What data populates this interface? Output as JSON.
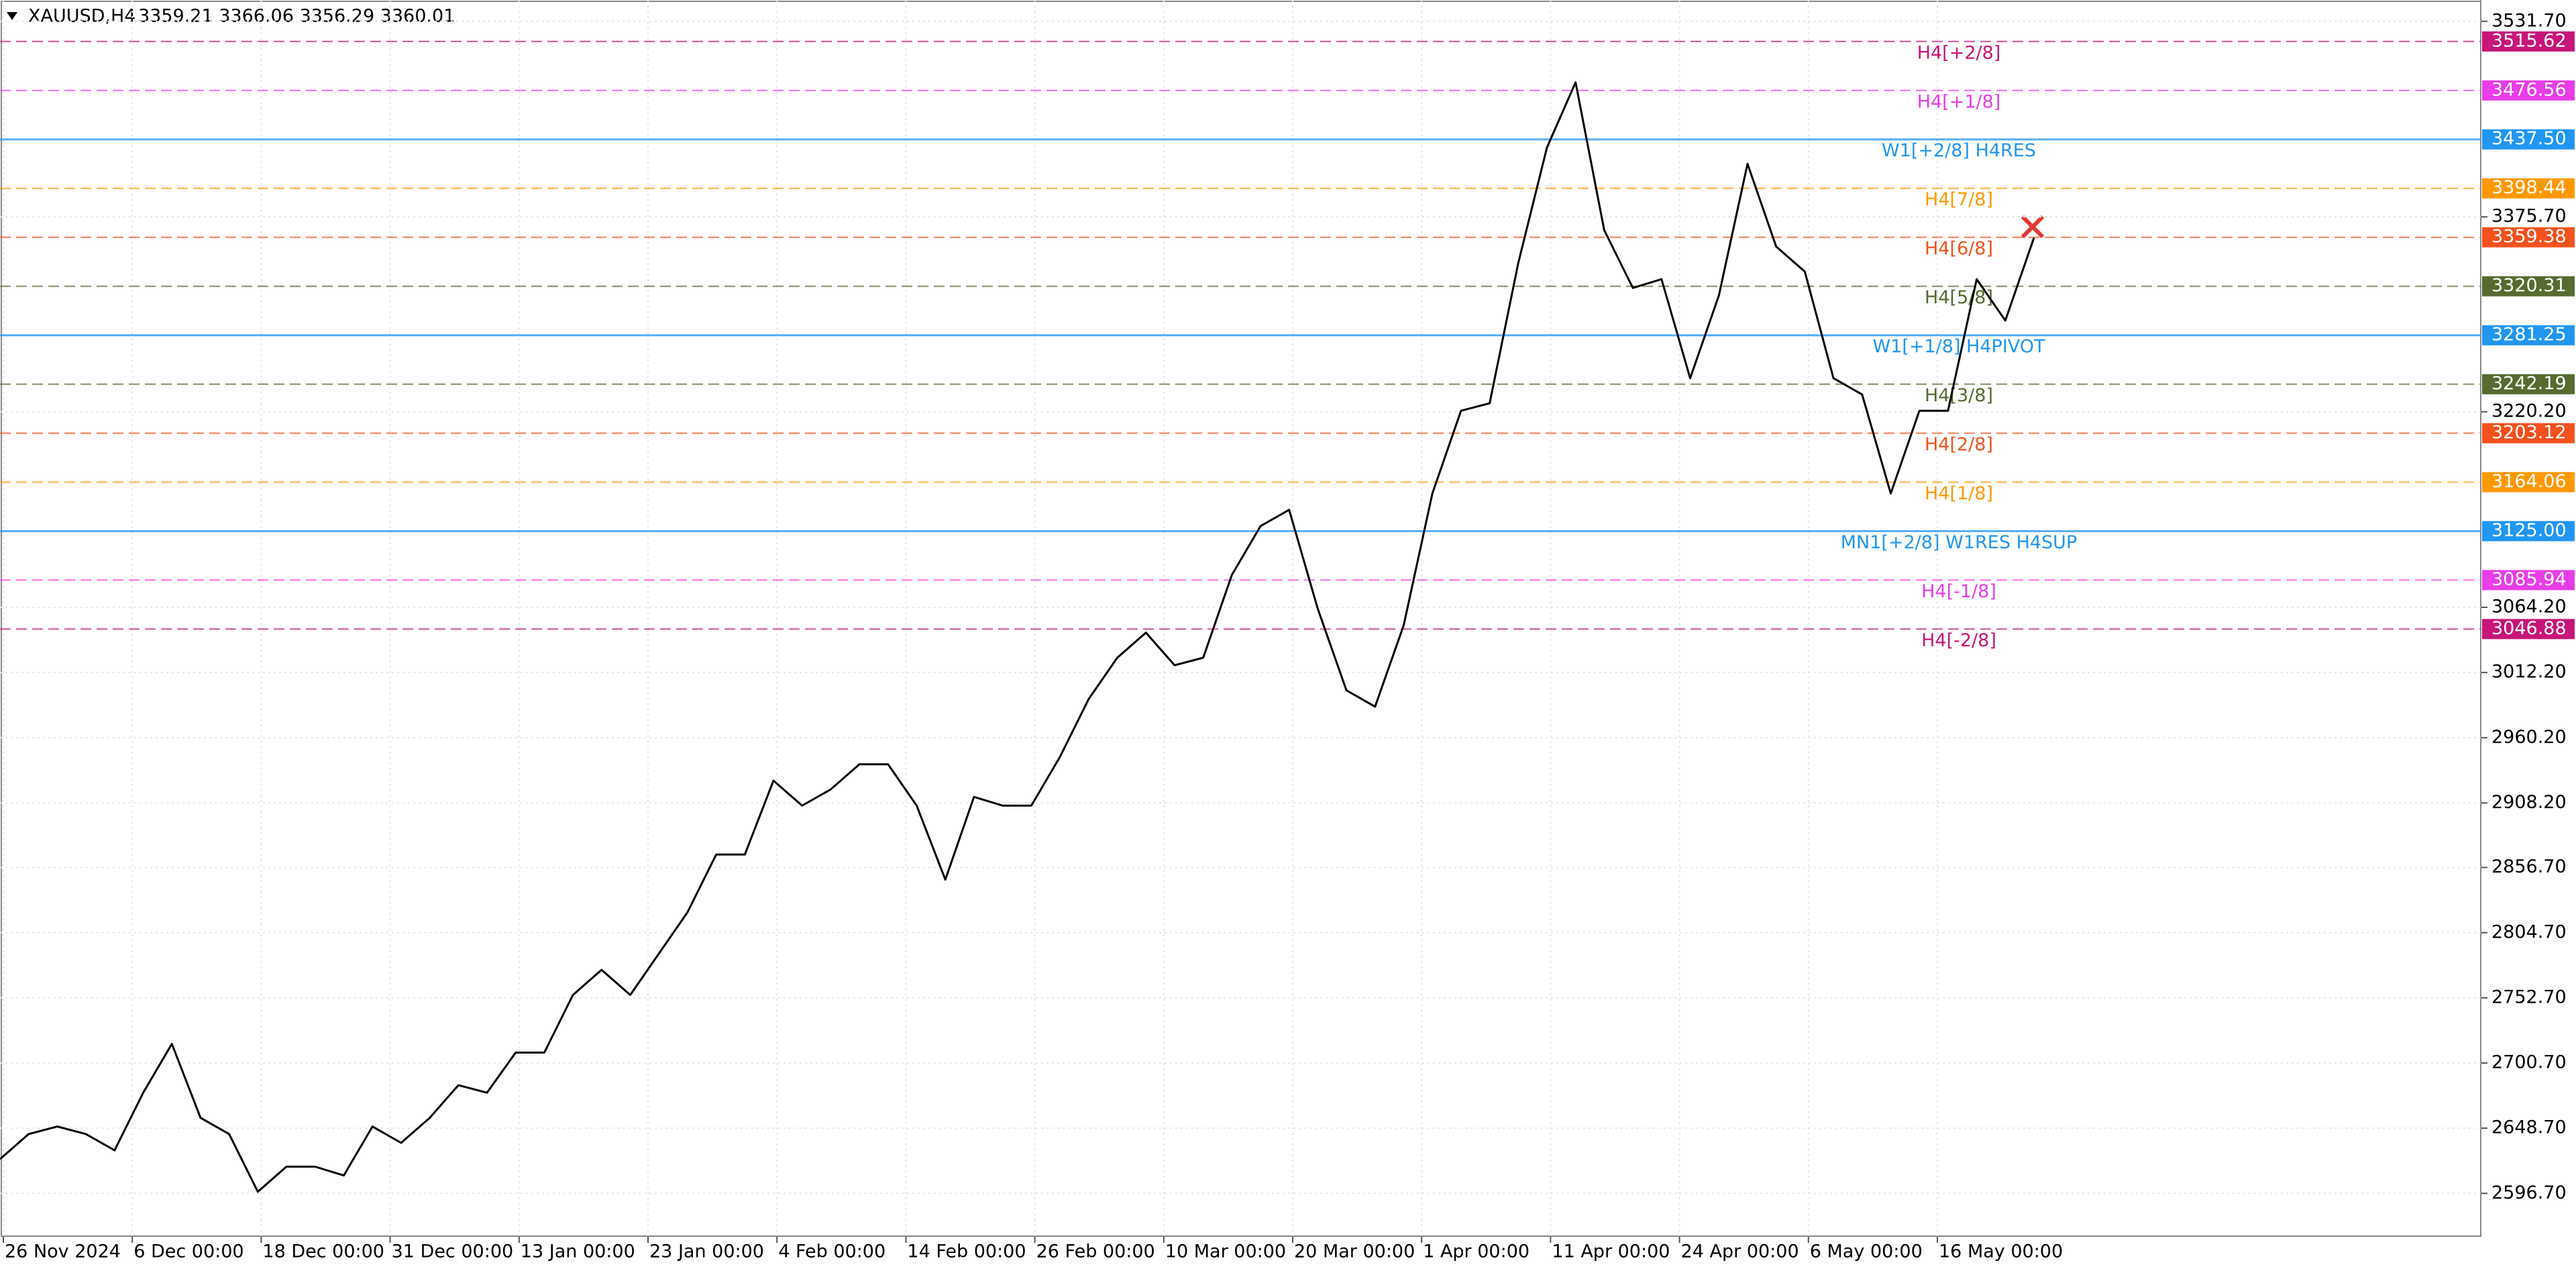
{
  "chart_data": {
    "type": "line",
    "title": "XAUUSD,H4",
    "subtitle": "3359.21 3366.06 3356.29 3360.01",
    "color": "#000000",
    "values": [
      2624,
      2644,
      2650,
      2644,
      2631,
      2677,
      2716,
      2657,
      2644,
      2598,
      2618,
      2618,
      2611,
      2650,
      2637,
      2657,
      2683,
      2677,
      2709,
      2709,
      2755,
      2775,
      2755,
      2788,
      2821,
      2867,
      2867,
      2926,
      2906,
      2919,
      2939,
      2939,
      2906,
      2847,
      2913,
      2906,
      2906,
      2945,
      2991,
      3024,
      3044,
      3018,
      3024,
      3090,
      3129,
      3142,
      3063,
      2998,
      2985,
      3050,
      3155,
      3221,
      3227,
      3339,
      3431,
      3483,
      3365,
      3319,
      3326,
      3247,
      3313,
      3418,
      3352,
      3332,
      3247,
      3234,
      3155,
      3221,
      3221,
      3326,
      3293,
      3359
    ],
    "ylim": [
      2562.6,
      3548.7
    ],
    "yticks": [
      {
        "value": 3531.7,
        "label": "3531.70"
      },
      {
        "value": 3375.7,
        "label": "3375.70"
      },
      {
        "value": 3220.2,
        "label": "3220.20"
      },
      {
        "value": 3064.2,
        "label": "3064.20"
      },
      {
        "value": 3012.2,
        "label": "3012.20"
      },
      {
        "value": 2960.2,
        "label": "2960.20"
      },
      {
        "value": 2908.2,
        "label": "2908.20"
      },
      {
        "value": 2856.7,
        "label": "2856.70"
      },
      {
        "value": 2804.7,
        "label": "2804.70"
      },
      {
        "value": 2752.7,
        "label": "2752.70"
      },
      {
        "value": 2700.7,
        "label": "2700.70"
      },
      {
        "value": 2648.7,
        "label": "2648.70"
      },
      {
        "value": 2596.7,
        "label": "2596.70"
      }
    ],
    "xlabels": [
      "26 Nov 2024",
      "6 Dec 00:00",
      "18 Dec 00:00",
      "31 Dec 00:00",
      "13 Jan 00:00",
      "23 Jan 00:00",
      "4 Feb 00:00",
      "14 Feb 00:00",
      "26 Feb 00:00",
      "10 Mar 00:00",
      "20 Mar 00:00",
      "1 Apr 00:00",
      "11 Apr 00:00",
      "24 Apr 00:00",
      "6 May 00:00",
      "16 May 00:00"
    ],
    "grid": true,
    "levels": [
      {
        "name": "H4[+2/8]",
        "value": 3515.62,
        "label": "3515.62",
        "color": "#c8157a",
        "dashed": true
      },
      {
        "name": "H4[+1/8]",
        "value": 3476.56,
        "label": "3476.56",
        "color": "#e83de8",
        "dashed": true
      },
      {
        "name": "W1[+2/8] H4RES",
        "value": 3437.5,
        "label": "3437.50",
        "color": "#2196f3",
        "dashed": false
      },
      {
        "name": "H4[7/8]",
        "value": 3398.44,
        "label": "3398.44",
        "color": "#ff9800",
        "dashed": true
      },
      {
        "name": "H4[6/8]",
        "value": 3359.38,
        "label": "3359.38",
        "color": "#f4511e",
        "dashed": true
      },
      {
        "name": "H4[5/8]",
        "value": 3320.31,
        "label": "3320.31",
        "color": "#556b2f",
        "dashed": true
      },
      {
        "name": "W1[+1/8] H4PIVOT",
        "value": 3281.25,
        "label": "3281.25",
        "color": "#2196f3",
        "dashed": false
      },
      {
        "name": "H4[3/8]",
        "value": 3242.19,
        "label": "3242.19",
        "color": "#556b2f",
        "dashed": true
      },
      {
        "name": "H4[2/8]",
        "value": 3203.12,
        "label": "3203.12",
        "color": "#f4511e",
        "dashed": true
      },
      {
        "name": "H4[1/8]",
        "value": 3164.06,
        "label": "3164.06",
        "color": "#ff9800",
        "dashed": true
      },
      {
        "name": "MN1[+2/8] W1RES H4SUP",
        "value": 3125,
        "label": "3125.00",
        "color": "#2196f3",
        "dashed": false
      },
      {
        "name": "H4[-1/8]",
        "value": 3085.94,
        "label": "3085.94",
        "color": "#e83de8",
        "dashed": true
      },
      {
        "name": "H4[-2/8]",
        "value": 3046.88,
        "label": "3046.88",
        "color": "#c8157a",
        "dashed": true
      }
    ]
  }
}
